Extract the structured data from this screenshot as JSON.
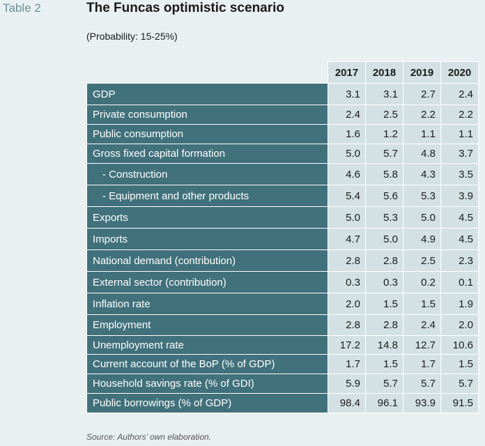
{
  "header": {
    "table_label": "Table 2",
    "title": "The Funcas optimistic scenario",
    "subtitle": "(Probability: 15-25%)"
  },
  "table": {
    "years": [
      "2017",
      "2018",
      "2019",
      "2020"
    ],
    "rows": [
      {
        "label": "GDP",
        "indent": false,
        "values": [
          "3.1",
          "3.1",
          "2.7",
          "2.4"
        ]
      },
      {
        "label": "Private consumption",
        "indent": false,
        "values": [
          "2.4",
          "2.5",
          "2.2",
          "2.2"
        ]
      },
      {
        "label": "Public consumption",
        "indent": false,
        "values": [
          "1.6",
          "1.2",
          "1.1",
          "1.1"
        ]
      },
      {
        "label": "Gross fixed capital formation",
        "indent": false,
        "values": [
          "5.0",
          "5.7",
          "4.8",
          "3.7"
        ]
      },
      {
        "label": "- Construction",
        "indent": true,
        "values": [
          "4.6",
          "5.8",
          "4.3",
          "3.5"
        ]
      },
      {
        "label": "- Equipment and other products",
        "indent": true,
        "values": [
          "5.4",
          "5.6",
          "5.3",
          "3.9"
        ]
      },
      {
        "label": "Exports",
        "indent": false,
        "values": [
          "5.0",
          "5.3",
          "5.0",
          "4.5"
        ]
      },
      {
        "label": "Imports",
        "indent": false,
        "values": [
          "4.7",
          "5.0",
          "4.9",
          "4.5"
        ]
      },
      {
        "label": "National demand (contribution)",
        "indent": false,
        "values": [
          "2.8",
          "2.8",
          "2.5",
          "2.3"
        ]
      },
      {
        "label": "External sector (contribution)",
        "indent": false,
        "values": [
          "0.3",
          "0.3",
          "0.2",
          "0.1"
        ]
      },
      {
        "label": "Inflation rate",
        "indent": false,
        "values": [
          "2.0",
          "1.5",
          "1.5",
          "1.9"
        ]
      },
      {
        "label": "Employment",
        "indent": false,
        "values": [
          "2.8",
          "2.8",
          "2.4",
          "2.0"
        ]
      },
      {
        "label": "Unemployment rate",
        "indent": false,
        "values": [
          "17.2",
          "14.8",
          "12.7",
          "10.6"
        ]
      },
      {
        "label": "Current account of the BoP (% of GDP)",
        "indent": false,
        "values": [
          "1.7",
          "1.5",
          "1.7",
          "1.5"
        ]
      },
      {
        "label": "Household savings rate (% of GDI)",
        "indent": false,
        "values": [
          "5.9",
          "5.7",
          "5.7",
          "5.7"
        ]
      },
      {
        "label": "Public borrowings (% of GDP)",
        "indent": false,
        "values": [
          "98.4",
          "96.1",
          "93.9",
          "91.5"
        ]
      }
    ]
  },
  "footer": {
    "source": "Source: Authors’ own elaboration."
  },
  "colors": {
    "background": "#e9f0f1",
    "label_cell": "#41717b",
    "value_cell": "#d3e1e4",
    "table_label_text": "#6d8f99"
  }
}
